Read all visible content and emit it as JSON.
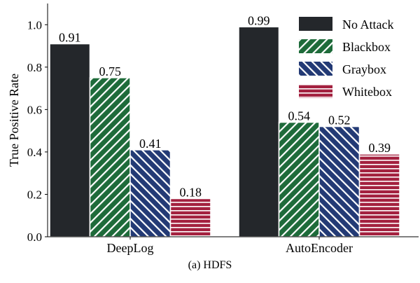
{
  "caption": "(a)  HDFS",
  "chart_data": {
    "type": "bar",
    "ylabel": "True Positive Rate",
    "xlabel": "",
    "ylim": [
      0,
      1.1
    ],
    "yticks": [
      "0.0",
      "0.2",
      "0.4",
      "0.6",
      "0.8",
      "1.0"
    ],
    "categories": [
      "DeepLog",
      "AutoEncoder"
    ],
    "legend_position": "top-right",
    "series": [
      {
        "name": "No Attack",
        "values": [
          0.91,
          0.99
        ],
        "labels": [
          "0.91",
          "0.99"
        ],
        "color": "#24272b",
        "pattern": "solid"
      },
      {
        "name": "Blackbox",
        "values": [
          0.75,
          0.54
        ],
        "labels": [
          "0.75",
          "0.54"
        ],
        "color": "#1e6b3a",
        "pattern": "diagonal-forward"
      },
      {
        "name": "Graybox",
        "values": [
          0.41,
          0.52
        ],
        "labels": [
          "0.41",
          "0.52"
        ],
        "color": "#233a75",
        "pattern": "diagonal-back"
      },
      {
        "name": "Whitebox",
        "values": [
          0.18,
          0.39
        ],
        "labels": [
          "0.18",
          "0.39"
        ],
        "color": "#a3213f",
        "pattern": "horizontal"
      }
    ]
  }
}
